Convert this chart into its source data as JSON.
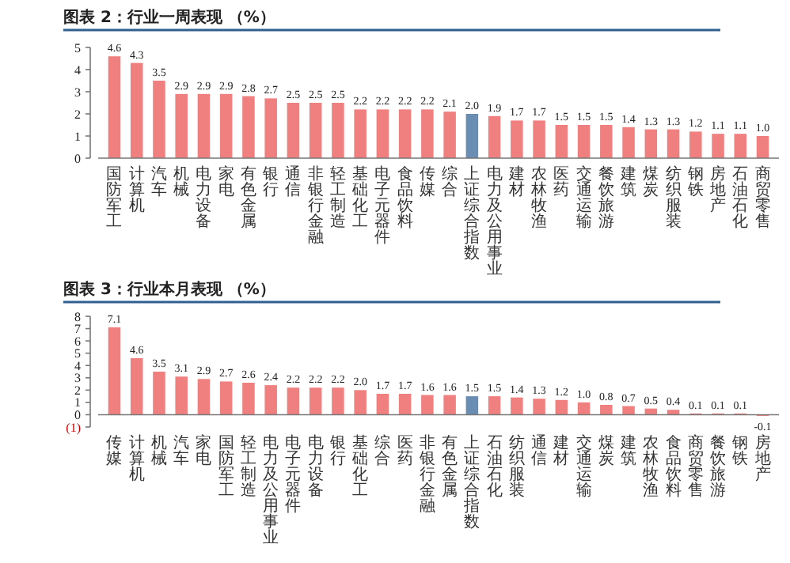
{
  "chart_data": [
    {
      "type": "bar",
      "title": "图表 2：行业一周表现 （%）",
      "categories": [
        "国防军工",
        "计算机",
        "汽车",
        "机械",
        "电力设备",
        "家电",
        "有色金属",
        "银行",
        "通信",
        "非银行金融",
        "轻工制造",
        "基础化工",
        "电子元器件",
        "食品饮料",
        "传媒",
        "综合",
        "上证综合指数",
        "电力及公用事业",
        "建材",
        "农林牧渔",
        "医药",
        "交通运输",
        "餐饮旅游",
        "建筑",
        "煤炭",
        "纺织服装",
        "钢铁",
        "房地产",
        "石油石化",
        "商贸零售"
      ],
      "values": [
        4.6,
        4.3,
        3.5,
        2.9,
        2.9,
        2.9,
        2.8,
        2.7,
        2.5,
        2.5,
        2.5,
        2.2,
        2.2,
        2.2,
        2.2,
        2.1,
        2.0,
        1.9,
        1.7,
        1.7,
        1.5,
        1.5,
        1.5,
        1.4,
        1.3,
        1.3,
        1.2,
        1.1,
        1.1,
        1.0
      ],
      "colors": [
        "#f08080",
        "#f08080",
        "#f08080",
        "#f08080",
        "#f08080",
        "#f08080",
        "#f08080",
        "#f08080",
        "#f08080",
        "#f08080",
        "#f08080",
        "#f08080",
        "#f08080",
        "#f08080",
        "#f08080",
        "#f08080",
        "#6a8db3",
        "#f08080",
        "#f08080",
        "#f08080",
        "#f08080",
        "#f08080",
        "#f08080",
        "#f08080",
        "#f08080",
        "#f08080",
        "#f08080",
        "#f08080",
        "#f08080",
        "#f08080"
      ],
      "ylim": [
        0,
        5
      ],
      "yticks": [
        0,
        1,
        2,
        3,
        4,
        5
      ],
      "value_labels": [
        "4.6",
        "4.3",
        "3.5",
        "2.9",
        "2.9",
        "2.9",
        "2.8",
        "2.7",
        "2.5",
        "2.5",
        "2.5",
        "2.2",
        "2.2",
        "2.2",
        "2.2",
        "2.1",
        "2.0",
        "1.9",
        "1.7",
        "1.7",
        "1.5",
        "1.5",
        "1.5",
        "1.4",
        "1.3",
        "1.3",
        "1.2",
        "1.1",
        "1.1",
        "1.0"
      ]
    },
    {
      "type": "bar",
      "title": "图表 3：行业本月表现 （%）",
      "categories": [
        "传媒",
        "计算机",
        "机械",
        "汽车",
        "家电",
        "国防军工",
        "轻工制造",
        "电力及公用事业",
        "电子元器件",
        "电力设备",
        "银行",
        "基础化工",
        "综合",
        "医药",
        "非银行金融",
        "有色金属",
        "上证综合指数",
        "石油石化",
        "纺织服装",
        "通信",
        "建材",
        "交通运输",
        "煤炭",
        "建筑",
        "农林牧渔",
        "食品饮料",
        "商贸零售",
        "餐饮旅游",
        "钢铁",
        "房地产"
      ],
      "values": [
        7.1,
        4.6,
        3.5,
        3.1,
        2.9,
        2.7,
        2.6,
        2.4,
        2.2,
        2.2,
        2.2,
        2.0,
        1.7,
        1.7,
        1.6,
        1.6,
        1.5,
        1.5,
        1.4,
        1.3,
        1.2,
        1.0,
        0.8,
        0.7,
        0.5,
        0.4,
        0.1,
        0.1,
        0.1,
        -0.1
      ],
      "colors": [
        "#f08080",
        "#f08080",
        "#f08080",
        "#f08080",
        "#f08080",
        "#f08080",
        "#f08080",
        "#f08080",
        "#f08080",
        "#f08080",
        "#f08080",
        "#f08080",
        "#f08080",
        "#f08080",
        "#f08080",
        "#f08080",
        "#6a8db3",
        "#f08080",
        "#f08080",
        "#f08080",
        "#f08080",
        "#f08080",
        "#f08080",
        "#f08080",
        "#f08080",
        "#f08080",
        "#f08080",
        "#f08080",
        "#f08080",
        "#f08080"
      ],
      "ylim": [
        -1,
        8
      ],
      "yticks": [
        {
          "value": -1,
          "label": "(1)"
        },
        0,
        1,
        2,
        3,
        4,
        5,
        6,
        7,
        8
      ],
      "value_labels": [
        "7.1",
        "4.6",
        "3.5",
        "3.1",
        "2.9",
        "2.7",
        "2.6",
        "2.4",
        "2.2",
        "2.2",
        "2.2",
        "2.0",
        "1.7",
        "1.7",
        "1.6",
        "1.6",
        "1.5",
        "1.5",
        "1.4",
        "1.3",
        "1.2",
        "1.0",
        "0.8",
        "0.7",
        "0.5",
        "0.4",
        "0.1",
        "0.1",
        "0.1",
        "-0.1"
      ]
    }
  ]
}
